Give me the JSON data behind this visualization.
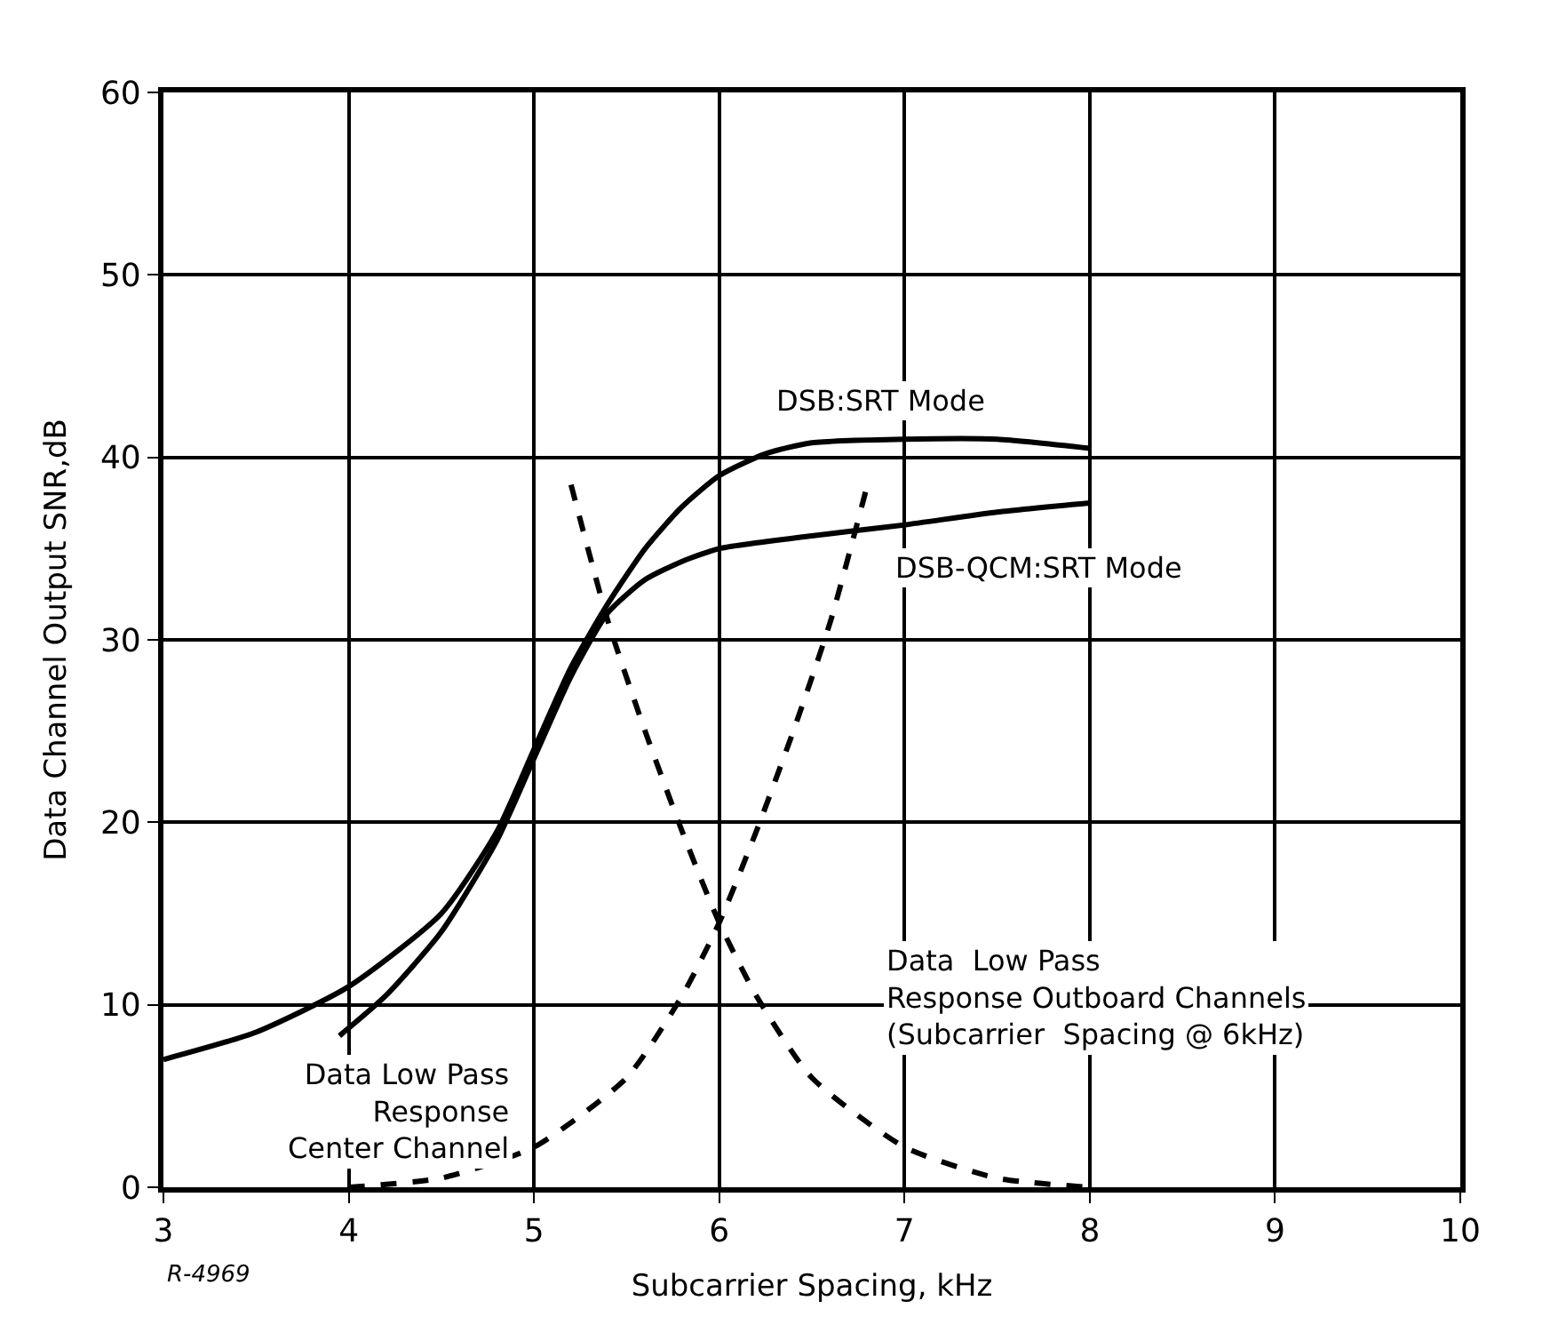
{
  "chart_data": {
    "type": "line",
    "xlabel": "Subcarrier Spacing, kHz",
    "ylabel": "Data Channel Output SNR,dB",
    "xlim": [
      3,
      10
    ],
    "xticks": [
      3,
      4,
      5,
      6,
      7,
      8,
      9,
      10
    ],
    "ylim": [
      0,
      60
    ],
    "yticks": [
      0,
      10,
      20,
      30,
      40,
      50,
      60
    ],
    "grid": true,
    "legend": false,
    "marker": "none",
    "series": [
      {
        "name": "DSB:SRT Mode",
        "color": "#000000",
        "line_style": "solid",
        "x": [
          3,
          3.5,
          4,
          4.5,
          4.8,
          5,
          5.2,
          5.4,
          5.6,
          5.8,
          6,
          6.25,
          6.5,
          7,
          7.5,
          8
        ],
        "values": [
          7,
          8.5,
          11,
          15,
          19.5,
          24,
          28.5,
          32,
          35,
          37.3,
          39,
          40.2,
          40.8,
          41,
          41,
          40.5
        ]
      },
      {
        "name": "DSB-QCM:SRT Mode",
        "color": "#000000",
        "line_style": "solid",
        "x": [
          3.95,
          4.2,
          4.5,
          4.8,
          5,
          5.2,
          5.4,
          5.6,
          5.8,
          6,
          6.5,
          7,
          7.5,
          8
        ],
        "values": [
          8.3,
          10.5,
          14,
          19,
          23.5,
          28,
          31.5,
          33.3,
          34.3,
          35,
          35.7,
          36.3,
          37,
          37.5
        ]
      },
      {
        "color": "#000000",
        "line_style": "dashed",
        "x": [
          4,
          4.5,
          5,
          5.5,
          5.8,
          6,
          6.2,
          6.4,
          6.6,
          6.8
        ],
        "values": [
          0,
          0.5,
          2.2,
          6,
          10.5,
          14.5,
          19.5,
          25,
          31,
          38.5
        ]
      },
      {
        "color": "#000000",
        "line_style": "dashed",
        "x": [
          5.2,
          5.4,
          5.6,
          5.8,
          6,
          6.2,
          6.5,
          7,
          7.5,
          8
        ],
        "values": [
          38.5,
          31,
          25,
          19.5,
          14.5,
          10.5,
          6,
          2.2,
          0.5,
          0
        ]
      }
    ],
    "annotations": [
      "Data Low Pass\nResponse\nCenter Channel",
      "Data  Low Pass\nResponse Outboard Channels\n(Subcarrier  Spacing @ 6kHz)",
      "R-4969"
    ]
  }
}
